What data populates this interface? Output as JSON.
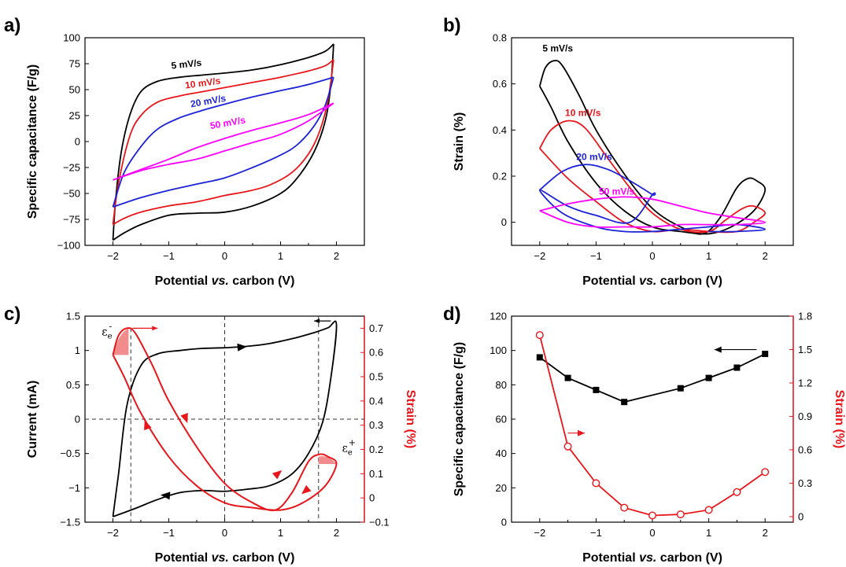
{
  "chart_data": [
    {
      "panel": "a)",
      "type": "line",
      "xlabel": "Potential vs. carbon (V)",
      "ylabel": "Specific capacitance (F/g)",
      "xlim": [
        -2.5,
        2.5
      ],
      "ylim": [
        -100,
        100
      ],
      "xticks": [
        -2,
        -1,
        0,
        1,
        2
      ],
      "yticks": [
        -100,
        -75,
        -50,
        -25,
        0,
        25,
        50,
        75,
        100
      ],
      "series": [
        {
          "name": "5 mV/s",
          "color": "#000000",
          "upper": [
            [
              -2,
              -95
            ],
            [
              -1.95,
              -55
            ],
            [
              -1.85,
              -10
            ],
            [
              -1.7,
              25
            ],
            [
              -1.5,
              48
            ],
            [
              -1.2,
              58
            ],
            [
              -0.8,
              62
            ],
            [
              -0.4,
              64
            ],
            [
              0,
              66
            ],
            [
              0.5,
              69
            ],
            [
              1,
              74
            ],
            [
              1.5,
              81
            ],
            [
              1.8,
              87
            ],
            [
              1.95,
              94
            ]
          ],
          "lower": [
            [
              1.95,
              94
            ],
            [
              1.9,
              55
            ],
            [
              1.8,
              20
            ],
            [
              1.6,
              -10
            ],
            [
              1.3,
              -35
            ],
            [
              1,
              -50
            ],
            [
              0.5,
              -62
            ],
            [
              0,
              -68
            ],
            [
              -0.5,
              -69
            ],
            [
              -1,
              -71
            ],
            [
              -1.5,
              -80
            ],
            [
              -1.8,
              -88
            ],
            [
              -2,
              -95
            ]
          ]
        },
        {
          "name": "10 mV/s",
          "color": "#e8161b",
          "upper": [
            [
              -2,
              -80
            ],
            [
              -1.9,
              -40
            ],
            [
              -1.7,
              5
            ],
            [
              -1.5,
              25
            ],
            [
              -1.2,
              38
            ],
            [
              -0.8,
              44
            ],
            [
              -0.4,
              48
            ],
            [
              0,
              52
            ],
            [
              0.5,
              57
            ],
            [
              1,
              62
            ],
            [
              1.5,
              68
            ],
            [
              1.8,
              73
            ],
            [
              1.95,
              79
            ]
          ],
          "lower": [
            [
              1.95,
              79
            ],
            [
              1.85,
              40
            ],
            [
              1.7,
              10
            ],
            [
              1.5,
              -12
            ],
            [
              1.2,
              -30
            ],
            [
              0.8,
              -42
            ],
            [
              0.4,
              -48
            ],
            [
              0,
              -52
            ],
            [
              -0.5,
              -58
            ],
            [
              -1,
              -62
            ],
            [
              -1.5,
              -68
            ],
            [
              -1.8,
              -74
            ],
            [
              -2,
              -80
            ]
          ]
        },
        {
          "name": "20 mV/s",
          "color": "#1c22d8",
          "upper": [
            [
              -2,
              -63
            ],
            [
              -1.8,
              -30
            ],
            [
              -1.5,
              -5
            ],
            [
              -1.2,
              12
            ],
            [
              -0.8,
              23
            ],
            [
              -0.4,
              30
            ],
            [
              0,
              36
            ],
            [
              0.5,
              43
            ],
            [
              1,
              49
            ],
            [
              1.5,
              55
            ],
            [
              1.95,
              62
            ]
          ],
          "lower": [
            [
              1.95,
              62
            ],
            [
              1.8,
              35
            ],
            [
              1.6,
              15
            ],
            [
              1.3,
              -3
            ],
            [
              1,
              -13
            ],
            [
              0.5,
              -25
            ],
            [
              0,
              -35
            ],
            [
              -0.5,
              -41
            ],
            [
              -1,
              -47
            ],
            [
              -1.5,
              -54
            ],
            [
              -2,
              -63
            ]
          ]
        },
        {
          "name": "50 mV/s",
          "color": "#ff00ff",
          "upper": [
            [
              -2,
              -37
            ],
            [
              -1.5,
              -27
            ],
            [
              -1,
              -17
            ],
            [
              -0.5,
              -6
            ],
            [
              0,
              3
            ],
            [
              0.5,
              11
            ],
            [
              1,
              18
            ],
            [
              1.5,
              26
            ],
            [
              1.95,
              37
            ]
          ],
          "lower": [
            [
              1.95,
              37
            ],
            [
              1.5,
              20
            ],
            [
              1,
              7
            ],
            [
              0.5,
              -1
            ],
            [
              0,
              -9
            ],
            [
              -0.5,
              -17
            ],
            [
              -1,
              -22
            ],
            [
              -1.5,
              -28
            ],
            [
              -2,
              -37
            ]
          ]
        }
      ],
      "annotations": [
        "5 mV/s",
        "10 mV/s",
        "20 mV/s",
        "50 mV/s"
      ]
    },
    {
      "panel": "b)",
      "type": "line",
      "xlabel": "Potential vs. carbon (V)",
      "ylabel": "Strain (%)",
      "xlim": [
        -2.5,
        2.5
      ],
      "ylim": [
        -0.1,
        0.8
      ],
      "xticks": [
        -2,
        -1,
        0,
        1,
        2
      ],
      "yticks": [
        0.0,
        0.2,
        0.4,
        0.6,
        0.8
      ],
      "series": [
        {
          "name": "5 mV/s",
          "color": "#000000",
          "points": [
            [
              -2,
              0.59
            ],
            [
              -1.9,
              0.67
            ],
            [
              -1.75,
              0.7
            ],
            [
              -1.6,
              0.68
            ],
            [
              -1.3,
              0.55
            ],
            [
              -1,
              0.4
            ],
            [
              -0.5,
              0.21
            ],
            [
              0,
              0.06
            ],
            [
              0.5,
              -0.02
            ],
            [
              0.9,
              -0.05
            ],
            [
              1.2,
              0.02
            ],
            [
              1.5,
              0.15
            ],
            [
              1.7,
              0.19
            ],
            [
              1.85,
              0.18
            ],
            [
              2,
              0.14
            ],
            [
              1.8,
              0.05
            ],
            [
              1.4,
              -0.02
            ],
            [
              1,
              -0.05
            ],
            [
              0.5,
              -0.04
            ],
            [
              0,
              -0.02
            ],
            [
              -0.5,
              0.05
            ],
            [
              -1,
              0.17
            ],
            [
              -1.5,
              0.35
            ],
            [
              -1.8,
              0.5
            ],
            [
              -2,
              0.59
            ]
          ]
        },
        {
          "name": "10 mV/s",
          "color": "#e8161b",
          "points": [
            [
              -2,
              0.32
            ],
            [
              -1.8,
              0.4
            ],
            [
              -1.5,
              0.44
            ],
            [
              -1.2,
              0.41
            ],
            [
              -0.8,
              0.28
            ],
            [
              -0.4,
              0.15
            ],
            [
              0,
              0.04
            ],
            [
              0.5,
              -0.03
            ],
            [
              1,
              -0.04
            ],
            [
              1.3,
              0.01
            ],
            [
              1.6,
              0.06
            ],
            [
              1.8,
              0.07
            ],
            [
              2,
              0.04
            ],
            [
              1.8,
              0.0
            ],
            [
              1.5,
              -0.04
            ],
            [
              1,
              -0.04
            ],
            [
              0.5,
              -0.03
            ],
            [
              0,
              -0.04
            ],
            [
              -0.5,
              0.0
            ],
            [
              -1,
              0.09
            ],
            [
              -1.5,
              0.19
            ],
            [
              -2,
              0.32
            ]
          ]
        },
        {
          "name": "20 mV/s",
          "color": "#1c22d8",
          "points": [
            [
              -2,
              0.14
            ],
            [
              -1.6,
              0.22
            ],
            [
              -1.2,
              0.25
            ],
            [
              -0.8,
              0.23
            ],
            [
              -0.4,
              0.18
            ],
            [
              0,
              0.12
            ],
            [
              0,
              0.12
            ],
            [
              -0.4,
              0.0
            ],
            [
              -1,
              0.03
            ],
            [
              -1.5,
              0.07
            ],
            [
              -2,
              0.14
            ],
            [
              -1.6,
              0.04
            ],
            [
              -1,
              -0.02
            ],
            [
              -0.5,
              -0.04
            ],
            [
              0,
              -0.04
            ],
            [
              0.5,
              -0.03
            ],
            [
              1,
              -0.02
            ],
            [
              1.5,
              -0.01
            ],
            [
              2,
              -0.03
            ],
            [
              1.5,
              -0.04
            ],
            [
              1,
              -0.04
            ]
          ]
        },
        {
          "name": "50 mV/s",
          "color": "#ff00ff",
          "points": [
            [
              -2,
              0.05
            ],
            [
              -1.5,
              0.08
            ],
            [
              -1,
              0.1
            ],
            [
              -0.5,
              0.11
            ],
            [
              0,
              0.1
            ],
            [
              0.5,
              0.07
            ],
            [
              1,
              0.04
            ],
            [
              1.5,
              0.02
            ],
            [
              2,
              0.0
            ],
            [
              1.5,
              -0.01
            ],
            [
              1,
              -0.01
            ],
            [
              0.5,
              -0.01
            ],
            [
              0,
              -0.02
            ],
            [
              -0.5,
              -0.02
            ],
            [
              -1,
              -0.02
            ],
            [
              -1.5,
              0.0
            ],
            [
              -2,
              0.05
            ]
          ]
        }
      ],
      "annotations": [
        "5 mV/s",
        "10 mV/s",
        "20 mV/s",
        "50 mV/s"
      ]
    },
    {
      "panel": "c)",
      "type": "line",
      "xlabel": "Potential vs. carbon (V)",
      "ylabel": "Current (mA)",
      "ylabel_right": "Strain (%)",
      "xlim": [
        -2.5,
        2.5
      ],
      "ylim": [
        -1.5,
        1.5
      ],
      "ylim_right": [
        -0.1,
        0.75
      ],
      "xticks": [
        -2,
        -1,
        0,
        1,
        2
      ],
      "yticks": [
        -1.5,
        -1.0,
        -0.5,
        0.0,
        0.5,
        1.0,
        1.5
      ],
      "yticks_right": [
        -0.1,
        0.0,
        0.1,
        0.2,
        0.3,
        0.4,
        0.5,
        0.6,
        0.7
      ],
      "current": [
        [
          -2,
          -1.42
        ],
        [
          -1.9,
          -0.8
        ],
        [
          -1.75,
          0.2
        ],
        [
          -1.5,
          0.78
        ],
        [
          -1.2,
          0.95
        ],
        [
          -0.8,
          1.0
        ],
        [
          -0.4,
          1.03
        ],
        [
          0,
          1.04
        ],
        [
          0.4,
          1.06
        ],
        [
          0.8,
          1.1
        ],
        [
          1.2,
          1.17
        ],
        [
          1.6,
          1.26
        ],
        [
          1.85,
          1.33
        ],
        [
          2,
          1.38
        ],
        [
          1.9,
          0.6
        ],
        [
          1.75,
          -0.05
        ],
        [
          1.5,
          -0.5
        ],
        [
          1.2,
          -0.8
        ],
        [
          0.8,
          -0.97
        ],
        [
          0.4,
          -1.02
        ],
        [
          0,
          -1.05
        ],
        [
          -0.4,
          -1.04
        ],
        [
          -0.8,
          -1.07
        ],
        [
          -1.2,
          -1.17
        ],
        [
          -1.6,
          -1.3
        ],
        [
          -2,
          -1.42
        ]
      ],
      "strain": [
        [
          -2,
          0.59
        ],
        [
          -1.9,
          0.67
        ],
        [
          -1.75,
          0.7
        ],
        [
          -1.6,
          0.68
        ],
        [
          -1.3,
          0.55
        ],
        [
          -1,
          0.4
        ],
        [
          -0.5,
          0.21
        ],
        [
          0,
          0.06
        ],
        [
          0.5,
          -0.02
        ],
        [
          0.9,
          -0.05
        ],
        [
          1.2,
          0.02
        ],
        [
          1.5,
          0.15
        ],
        [
          1.7,
          0.18
        ],
        [
          1.85,
          0.17
        ],
        [
          2,
          0.14
        ],
        [
          1.8,
          0.05
        ],
        [
          1.4,
          -0.02
        ],
        [
          1,
          -0.05
        ],
        [
          0.5,
          -0.04
        ],
        [
          0,
          -0.02
        ],
        [
          -0.5,
          0.05
        ],
        [
          -1,
          0.17
        ],
        [
          -1.5,
          0.35
        ],
        [
          -1.8,
          0.5
        ],
        [
          -2,
          0.59
        ]
      ],
      "colors": {
        "current": "#000000",
        "strain": "#e8161b"
      },
      "annotations": {
        "eps_minus_base": "ε",
        "eps_minus_sub": "e",
        "eps_minus_sup": "-",
        "eps_plus_base": "ε",
        "eps_plus_sub": "e",
        "eps_plus_sup": "+"
      }
    },
    {
      "panel": "d)",
      "type": "line",
      "xlabel": "Potential vs. carbon (V)",
      "ylabel": "Specific capacitance (F/g)",
      "ylabel_right": "Strain (%)",
      "xlim": [
        -2.5,
        2.5
      ],
      "ylim": [
        0,
        120
      ],
      "ylim_right": [
        -0.05,
        1.8
      ],
      "xticks": [
        -2,
        -1,
        0,
        1,
        2
      ],
      "yticks": [
        0,
        20,
        40,
        60,
        80,
        100,
        120
      ],
      "yticks_right": [
        0.0,
        0.3,
        0.6,
        0.9,
        1.2,
        1.5,
        1.8
      ],
      "capacitance": {
        "x": [
          -2,
          -1.5,
          -1,
          -0.5,
          0.5,
          1,
          1.5,
          2
        ],
        "y": [
          96,
          84,
          77,
          70,
          78,
          84,
          90,
          98
        ]
      },
      "strain": {
        "x": [
          -2,
          -1.5,
          -1,
          -0.5,
          0,
          0.5,
          1,
          1.5,
          2
        ],
        "y": [
          1.63,
          0.63,
          0.3,
          0.08,
          0.01,
          0.02,
          0.06,
          0.22,
          0.4
        ]
      },
      "colors": {
        "capacitance": "#000000",
        "strain": "#e8161b"
      }
    }
  ]
}
